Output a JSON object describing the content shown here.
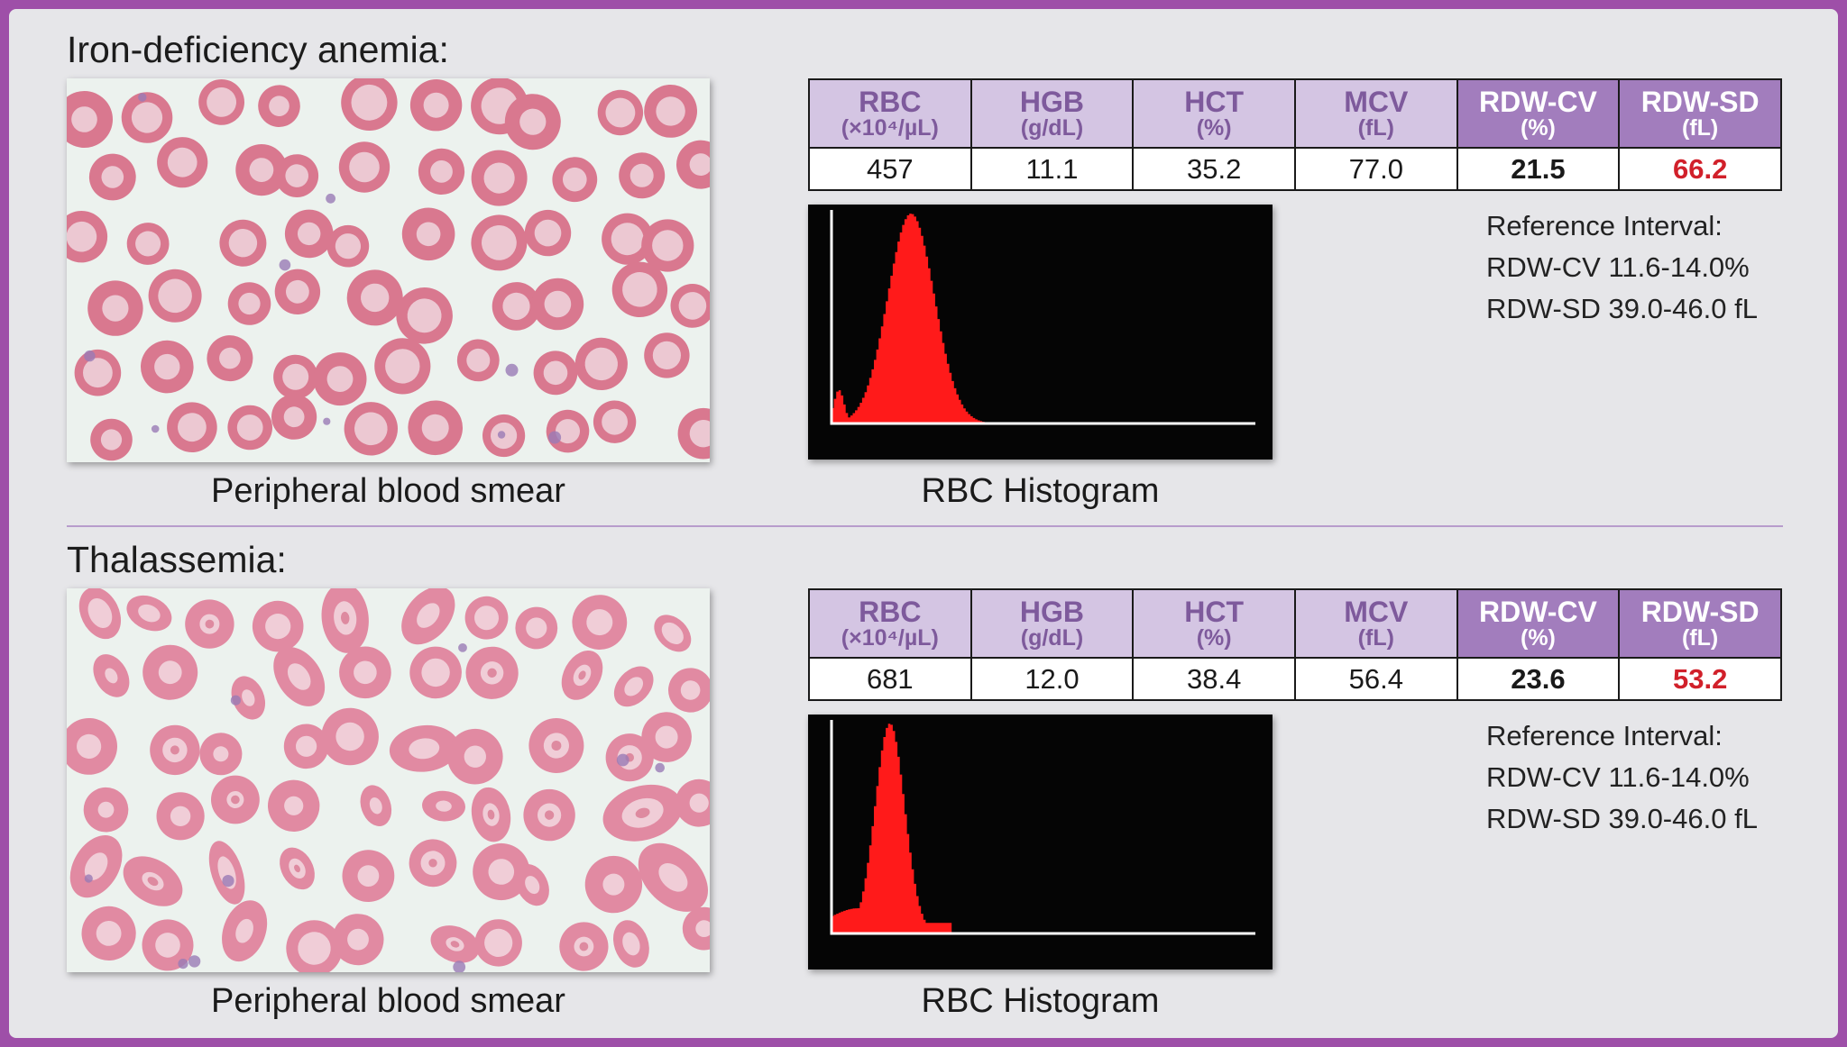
{
  "colors": {
    "frame": "#9e4fa8",
    "panel": "#e6e6e9",
    "header_light": "#d4c5e3",
    "header_dark": "#a27dbd",
    "abnormal_value": "#d1202a",
    "histogram_fill": "#ff1a1a"
  },
  "sections": [
    {
      "title": "Iron-deficiency anemia:",
      "smear_caption": "Peripheral blood smear",
      "histogram_caption": "RBC Histogram",
      "table": {
        "headers": [
          {
            "name": "RBC",
            "unit": "(×10⁴/µL)"
          },
          {
            "name": "HGB",
            "unit": "(g/dL)"
          },
          {
            "name": "HCT",
            "unit": "(%)"
          },
          {
            "name": "MCV",
            "unit": "(fL)"
          },
          {
            "name": "RDW-CV",
            "unit": "(%)"
          },
          {
            "name": "RDW-SD",
            "unit": "(fL)"
          }
        ],
        "values": [
          "457",
          "11.1",
          "35.2",
          "77.0",
          "21.5",
          "66.2"
        ]
      },
      "reference": {
        "heading": "Reference Interval:",
        "lines": [
          "RDW-CV 11.6-14.0%",
          "RDW-SD 39.0-46.0 fL"
        ]
      },
      "histogram": {
        "peaks": [
          {
            "center": 0.185,
            "width": 0.055,
            "height": 1.0
          },
          {
            "center": 0.015,
            "width": 0.012,
            "height": 0.16
          }
        ],
        "tail": {
          "start": 0.26,
          "end": 0.3,
          "level": 0.03
        }
      }
    },
    {
      "title": "Thalassemia:",
      "smear_caption": "Peripheral blood smear",
      "histogram_caption": "RBC Histogram",
      "table": {
        "headers": [
          {
            "name": "RBC",
            "unit": "(×10⁴/µL)"
          },
          {
            "name": "HGB",
            "unit": "(g/dL)"
          },
          {
            "name": "HCT",
            "unit": "(%)"
          },
          {
            "name": "MCV",
            "unit": "(fL)"
          },
          {
            "name": "RDW-CV",
            "unit": "(%)"
          },
          {
            "name": "RDW-SD",
            "unit": "(fL)"
          }
        ],
        "values": [
          "681",
          "12.0",
          "38.4",
          "56.4",
          "23.6",
          "53.2"
        ]
      },
      "reference": {
        "heading": "Reference Interval:",
        "lines": [
          "RDW-CV 11.6-14.0%",
          "RDW-SD 39.0-46.0 fL"
        ]
      },
      "histogram": {
        "peaks": [
          {
            "center": 0.135,
            "width": 0.035,
            "height": 1.0
          },
          {
            "center": 0.06,
            "width": 0.07,
            "height": 0.12
          }
        ],
        "tail": {
          "start": 0.18,
          "end": 0.28,
          "level": 0.05
        }
      }
    }
  ]
}
